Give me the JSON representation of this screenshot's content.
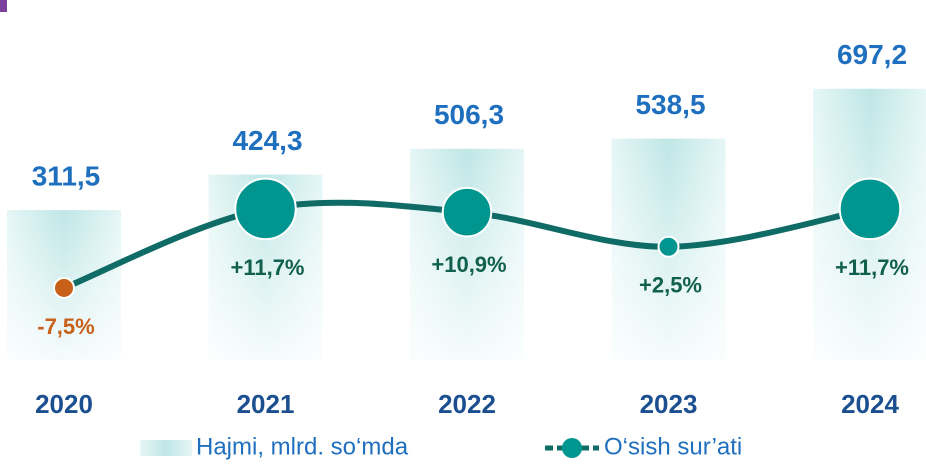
{
  "chart_data": {
    "type": "bar_line",
    "categories": [
      "2020",
      "2021",
      "2022",
      "2023",
      "2024"
    ],
    "series": [
      {
        "name": "Hajmi, mlrd. so‘mda",
        "type": "bar",
        "color": "#bfe6e6",
        "values": [
          311.5,
          424.3,
          506.3,
          538.5,
          697.2
        ],
        "value_labels": [
          "311,5",
          "424,3",
          "506,3",
          "538,5",
          "697,2"
        ]
      },
      {
        "name": "O‘sish sur’ati",
        "type": "line",
        "axis": "y2",
        "color": "#0f6b66",
        "marker_color": "#00968f",
        "negative_color": "#c8601a",
        "values": [
          -7.5,
          11.7,
          10.9,
          2.5,
          11.7
        ],
        "value_labels": [
          "-7,5%",
          "+11,7%",
          "+10,9%",
          "+2,5%",
          "+11,7%"
        ]
      }
    ],
    "ylim": [
      -165,
      725
    ],
    "y2lim": [
      -25,
      43
    ],
    "legend": "bottom"
  }
}
